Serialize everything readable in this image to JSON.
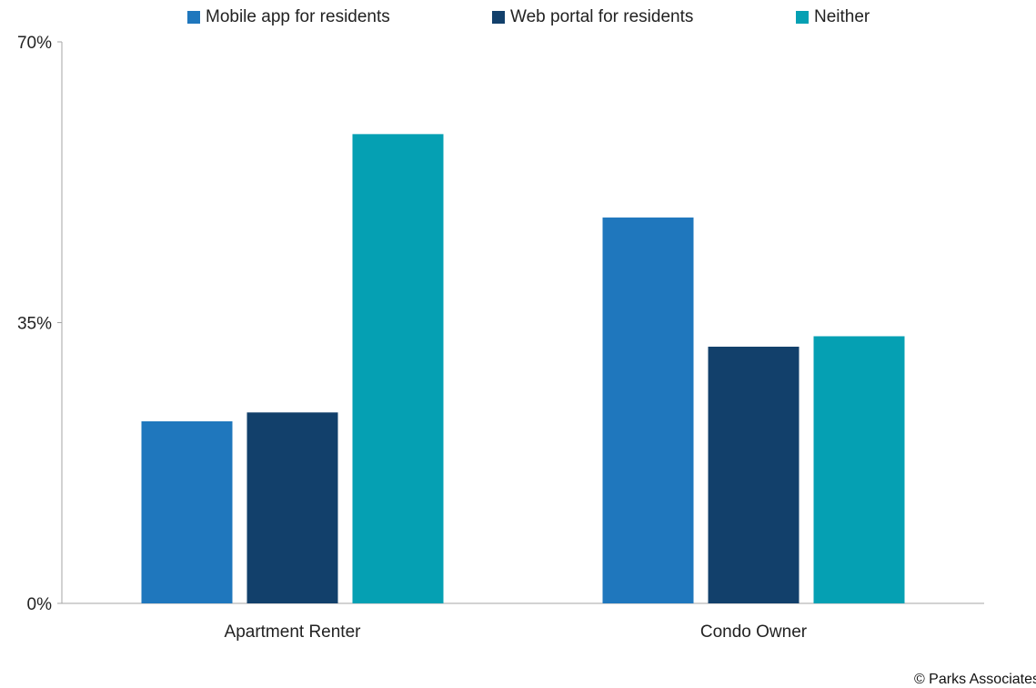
{
  "chart_data": {
    "type": "bar",
    "categories": [
      "Apartment Renter",
      "Condo Owner"
    ],
    "series": [
      {
        "name": "Mobile app for residents",
        "color": "#1f77bd",
        "values": [
          22.7,
          48.1
        ]
      },
      {
        "name": "Web portal for residents",
        "color": "#12406b",
        "values": [
          23.8,
          32.0
        ]
      },
      {
        "name": "Neither",
        "color": "#05a0b3",
        "values": [
          58.5,
          33.3
        ]
      }
    ],
    "ylim": [
      0,
      70
    ],
    "yticks": [
      "0%",
      "35%",
      "70%"
    ],
    "ytick_values": [
      0,
      35,
      70
    ],
    "legend_position": "top",
    "grid": false
  },
  "footer": {
    "copyright": "© Parks Associates"
  }
}
